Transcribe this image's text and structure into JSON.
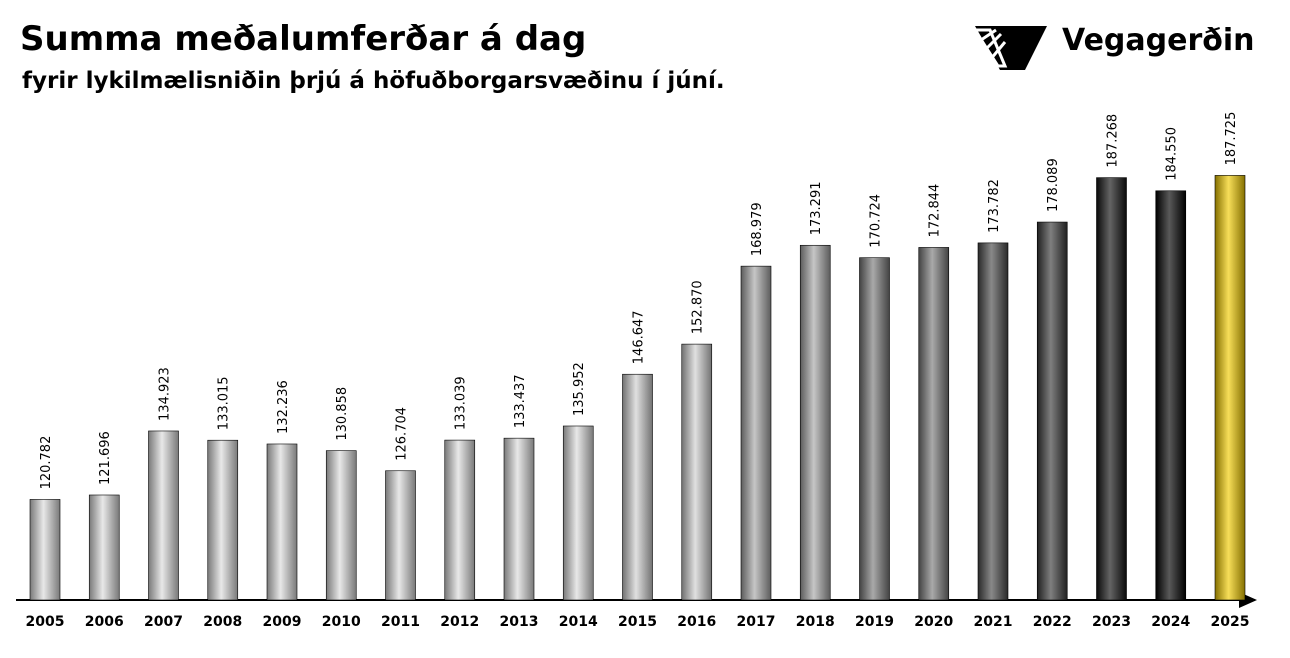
{
  "chart_data": {
    "type": "bar",
    "title": "Summa meðalumferðar á dag",
    "subtitle": "fyrir lykilmælisniðin þrjú á höfuðborgarsvæðinu í júní.",
    "brand": "Vegagerðin",
    "categories": [
      "2005",
      "2006",
      "2007",
      "2008",
      "2009",
      "2010",
      "2011",
      "2012",
      "2013",
      "2014",
      "2015",
      "2016",
      "2017",
      "2018",
      "2019",
      "2020",
      "2021",
      "2022",
      "2023",
      "2024",
      "2025"
    ],
    "values": [
      120782,
      121696,
      134923,
      133015,
      132236,
      130858,
      126704,
      133039,
      133437,
      135952,
      146647,
      152870,
      168979,
      173291,
      170724,
      172844,
      173782,
      178089,
      187268,
      184550,
      187725
    ],
    "value_labels": [
      "120.782",
      "121.696",
      "134.923",
      "133.015",
      "132.236",
      "130.858",
      "126.704",
      "133.039",
      "133.437",
      "135.952",
      "146.647",
      "152.870",
      "168.979",
      "173.291",
      "170.724",
      "172.844",
      "173.782",
      "178.089",
      "187.268",
      "184.550",
      "187.725"
    ],
    "colors": [
      "#dcdcdc",
      "#dcdcdc",
      "#dcdcdc",
      "#dcdcdc",
      "#dcdcdc",
      "#dcdcdc",
      "#dcdcdc",
      "#dcdcdc",
      "#dcdcdc",
      "#dcdcdc",
      "#cfcfcf",
      "#cfcfcf",
      "#a8a8a8",
      "#a8a8a8",
      "#7a7a7a",
      "#7a7a7a",
      "#4a4a4a",
      "#3a3a3a",
      "#111111",
      "#000000",
      "#f2cc00"
    ],
    "ylim": [
      100000,
      200000
    ]
  }
}
